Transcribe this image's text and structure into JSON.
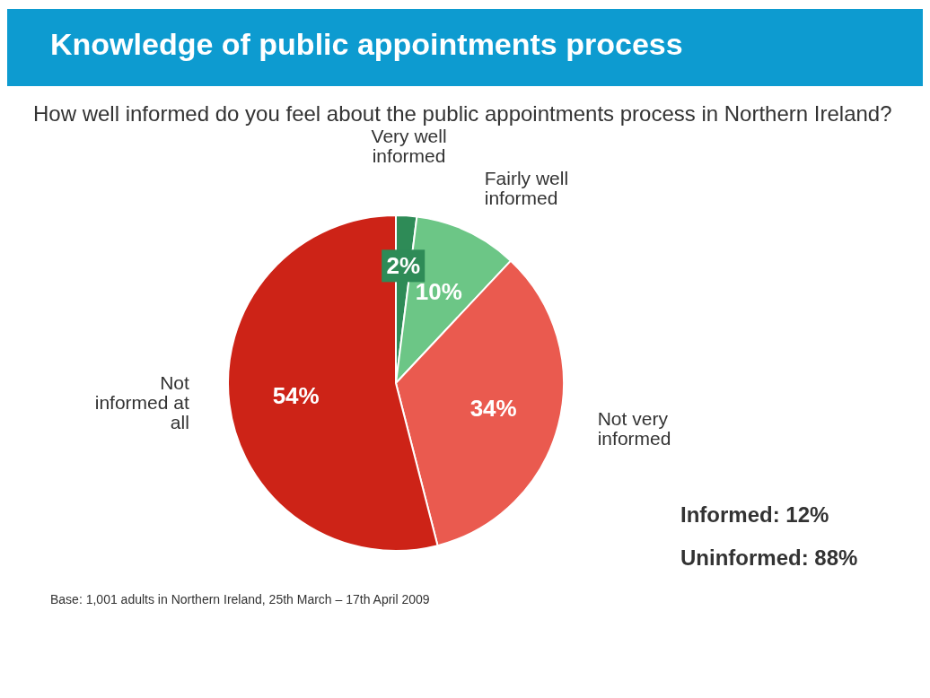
{
  "chart_data": {
    "type": "pie",
    "title": "Knowledge of public appointments process",
    "subtitle": "How well informed do you feel about the public appointments process in Northern Ireland?",
    "categories": [
      "Very well informed",
      "Fairly well informed",
      "Not very informed",
      "Not informed at all"
    ],
    "values": [
      2,
      10,
      34,
      54
    ],
    "colors": [
      "#2e8b57",
      "#6cc686",
      "#ea5a4f",
      "#cd2317"
    ],
    "value_labels": [
      "2%",
      "10%",
      "34%",
      "54%"
    ],
    "annotations": [
      "Informed: 12%",
      "Uninformed: 88%",
      "Base: 1,001 adults in Northern Ireland, 25th March – 17th April 2009"
    ]
  }
}
